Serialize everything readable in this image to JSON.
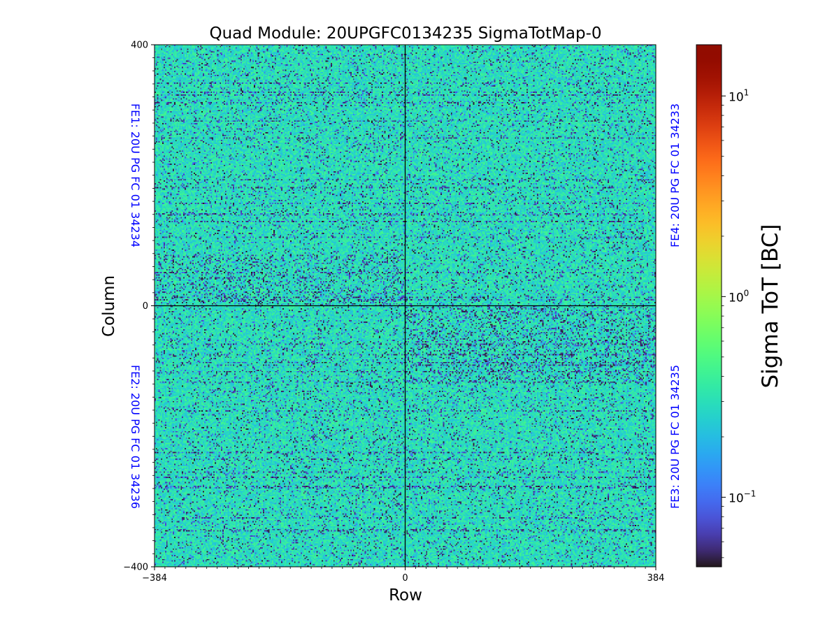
{
  "chart_data": {
    "type": "heatmap",
    "title": "Quad Module: 20UPGFC0134235 SigmaTotMap-0",
    "xlabel": "Row",
    "ylabel": "Column",
    "xlim": [
      -384,
      384
    ],
    "ylim": [
      -400,
      400
    ],
    "x_ticks": [
      {
        "value": -384,
        "label": "−384"
      },
      {
        "value": 0,
        "label": "0"
      },
      {
        "value": 384,
        "label": "384"
      }
    ],
    "y_ticks": [
      {
        "value": 400,
        "label": "400"
      },
      {
        "value": 0,
        "label": "0"
      },
      {
        "value": -400,
        "label": "−400"
      }
    ],
    "colorbar": {
      "label": "Sigma ToT [BC]",
      "scale": "log",
      "colormap": "turbo",
      "vmin": 0.045,
      "vmax": 18,
      "ticks": [
        {
          "value": 10,
          "base": "10",
          "exp": "1"
        },
        {
          "value": 1,
          "base": "10",
          "exp": "0"
        },
        {
          "value": 0.1,
          "base": "10",
          "exp": "−1"
        }
      ]
    },
    "chips": [
      {
        "id": "FE1",
        "label": "FE1: 20U PG FC 01 34234",
        "quadrant": "top-left",
        "label_color": "#0000ff"
      },
      {
        "id": "FE4",
        "label": "FE4: 20U PG FC 01 34233",
        "quadrant": "top-right",
        "label_color": "#0000ff"
      },
      {
        "id": "FE2",
        "label": "FE2: 20U PG FC 01 34236",
        "quadrant": "bottom-left",
        "label_color": "#0000ff"
      },
      {
        "id": "FE3",
        "label": "FE3: 20U PG FC 01 34235",
        "quadrant": "bottom-right",
        "label_color": "#0000ff"
      }
    ],
    "typical_value": 0.3,
    "divider_lines": {
      "x": 0,
      "y": 0,
      "color": "#000000"
    }
  }
}
